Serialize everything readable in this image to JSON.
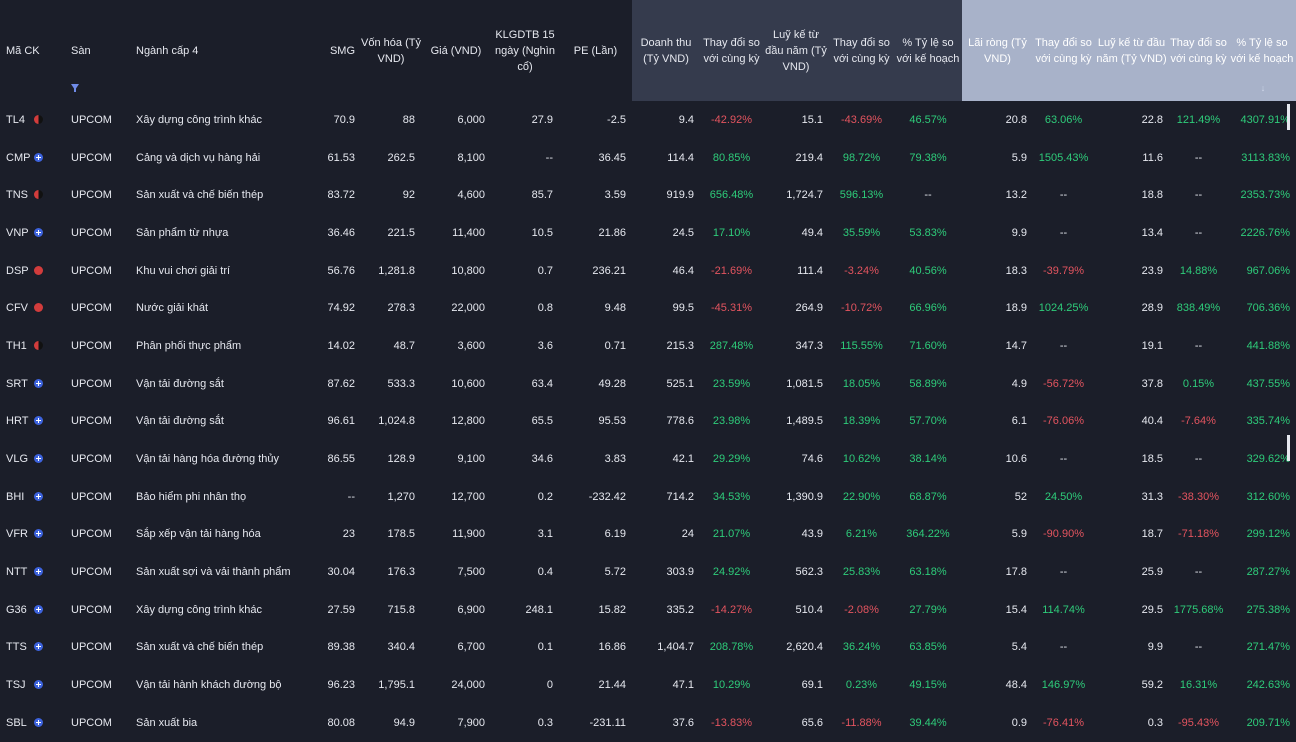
{
  "headers": {
    "ma_ck": "Mã CK",
    "san": "Sàn",
    "nganh": "Ngành cấp 4",
    "smg": "SMG",
    "von_hoa": "Vốn hóa (Tỷ VND)",
    "gia": "Giá (VND)",
    "klgdtb": "KLGDTB 15 ngày (Nghìn cổ)",
    "pe": "PE (Lần)",
    "doanh_thu": "Doanh thu (Tỷ VND)",
    "thay_doi_1": "Thay đổi so với cùng kỳ",
    "luy_ke_1": "Luỹ kế từ đầu năm (Tỷ VND)",
    "thay_doi_2": "Thay đổi so với cùng kỳ",
    "ty_le_1": "% Tỷ lệ so với kế hoạch",
    "lai_rong": "Lãi ròng (Tỷ VND)",
    "thay_doi_3": "Thay đổi so với cùng kỳ",
    "luy_ke_2": "Luỹ kế từ đầu năm (Tỷ VND)",
    "thay_doi_4": "Thay đổi so với cùng kỳ",
    "ty_le_2": "% Tỷ lệ so với kế hoạch"
  },
  "icons": {
    "filter": "filter-icon",
    "sort": "sort-down-icon",
    "plus_marker": "plus-circle-icon",
    "red_marker": "red-dot-icon",
    "half_marker": "half-red-black-icon"
  },
  "colors": {
    "positive": "#2ecc7a",
    "negative": "#e3545f",
    "accent": "#3d63dd"
  },
  "rows": [
    [
      "TL4",
      "half",
      "UPCOM",
      "Xây dựng công trình khác",
      "70.9",
      "88",
      "6,000",
      "27.9",
      "-2.5",
      "9.4",
      "-42.92%",
      "15.1",
      "-43.69%",
      "46.57%",
      "20.8",
      "63.06%",
      "22.8",
      "121.49%",
      "4307.91%"
    ],
    [
      "CMP",
      "plus",
      "UPCOM",
      "Cảng và dịch vụ hàng hải",
      "61.53",
      "262.5",
      "8,100",
      "--",
      "36.45",
      "114.4",
      "80.85%",
      "219.4",
      "98.72%",
      "79.38%",
      "5.9",
      "1505.43%",
      "11.6",
      "--",
      "3113.83%"
    ],
    [
      "TNS",
      "half",
      "UPCOM",
      "Sản xuất và chế biến thép",
      "83.72",
      "92",
      "4,600",
      "85.7",
      "3.59",
      "919.9",
      "656.48%",
      "1,724.7",
      "596.13%",
      "--",
      "13.2",
      "--",
      "18.8",
      "--",
      "2353.73%"
    ],
    [
      "VNP",
      "plus",
      "UPCOM",
      "Sản phẩm từ nhựa",
      "36.46",
      "221.5",
      "11,400",
      "10.5",
      "21.86",
      "24.5",
      "17.10%",
      "49.4",
      "35.59%",
      "53.83%",
      "9.9",
      "--",
      "13.4",
      "--",
      "2226.76%"
    ],
    [
      "DSP",
      "red",
      "UPCOM",
      "Khu vui chơi giải trí",
      "56.76",
      "1,281.8",
      "10,800",
      "0.7",
      "236.21",
      "46.4",
      "-21.69%",
      "111.4",
      "-3.24%",
      "40.56%",
      "18.3",
      "-39.79%",
      "23.9",
      "14.88%",
      "967.06%"
    ],
    [
      "CFV",
      "red",
      "UPCOM",
      "Nước giải khát",
      "74.92",
      "278.3",
      "22,000",
      "0.8",
      "9.48",
      "99.5",
      "-45.31%",
      "264.9",
      "-10.72%",
      "66.96%",
      "18.9",
      "1024.25%",
      "28.9",
      "838.49%",
      "706.36%"
    ],
    [
      "TH1",
      "half",
      "UPCOM",
      "Phân phối thực phẩm",
      "14.02",
      "48.7",
      "3,600",
      "3.6",
      "0.71",
      "215.3",
      "287.48%",
      "347.3",
      "115.55%",
      "71.60%",
      "14.7",
      "--",
      "19.1",
      "--",
      "441.88%"
    ],
    [
      "SRT",
      "plus",
      "UPCOM",
      "Vận tải đường sắt",
      "87.62",
      "533.3",
      "10,600",
      "63.4",
      "49.28",
      "525.1",
      "23.59%",
      "1,081.5",
      "18.05%",
      "58.89%",
      "4.9",
      "-56.72%",
      "37.8",
      "0.15%",
      "437.55%"
    ],
    [
      "HRT",
      "plus",
      "UPCOM",
      "Vận tải đường sắt",
      "96.61",
      "1,024.8",
      "12,800",
      "65.5",
      "95.53",
      "778.6",
      "23.98%",
      "1,489.5",
      "18.39%",
      "57.70%",
      "6.1",
      "-76.06%",
      "40.4",
      "-7.64%",
      "335.74%"
    ],
    [
      "VLG",
      "plus",
      "UPCOM",
      "Vận tải hàng hóa đường thủy",
      "86.55",
      "128.9",
      "9,100",
      "34.6",
      "3.83",
      "42.1",
      "29.29%",
      "74.6",
      "10.62%",
      "38.14%",
      "10.6",
      "--",
      "18.5",
      "--",
      "329.62%"
    ],
    [
      "BHI",
      "plus",
      "UPCOM",
      "Bảo hiểm phi nhân thọ",
      "--",
      "1,270",
      "12,700",
      "0.2",
      "-232.42",
      "714.2",
      "34.53%",
      "1,390.9",
      "22.90%",
      "68.87%",
      "52",
      "24.50%",
      "31.3",
      "-38.30%",
      "312.60%"
    ],
    [
      "VFR",
      "plus",
      "UPCOM",
      "Sắp xếp vận tải hàng hóa",
      "23",
      "178.5",
      "11,900",
      "3.1",
      "6.19",
      "24",
      "21.07%",
      "43.9",
      "6.21%",
      "364.22%",
      "5.9",
      "-90.90%",
      "18.7",
      "-71.18%",
      "299.12%"
    ],
    [
      "NTT",
      "plus",
      "UPCOM",
      "Sản xuất sợi và vải thành phẩm",
      "30.04",
      "176.3",
      "7,500",
      "0.4",
      "5.72",
      "303.9",
      "24.92%",
      "562.3",
      "25.83%",
      "63.18%",
      "17.8",
      "--",
      "25.9",
      "--",
      "287.27%"
    ],
    [
      "G36",
      "plus",
      "UPCOM",
      "Xây dựng công trình khác",
      "27.59",
      "715.8",
      "6,900",
      "248.1",
      "15.82",
      "335.2",
      "-14.27%",
      "510.4",
      "-2.08%",
      "27.79%",
      "15.4",
      "114.74%",
      "29.5",
      "1775.68%",
      "275.38%"
    ],
    [
      "TTS",
      "plus",
      "UPCOM",
      "Sản xuất và chế biến thép",
      "89.38",
      "340.4",
      "6,700",
      "0.1",
      "16.86",
      "1,404.7",
      "208.78%",
      "2,620.4",
      "36.24%",
      "63.85%",
      "5.4",
      "--",
      "9.9",
      "--",
      "271.47%"
    ],
    [
      "TSJ",
      "plus",
      "UPCOM",
      "Vận tải hành khách đường bộ",
      "96.23",
      "1,795.1",
      "24,000",
      "0",
      "21.44",
      "47.1",
      "10.29%",
      "69.1",
      "0.23%",
      "49.15%",
      "48.4",
      "146.97%",
      "59.2",
      "16.31%",
      "242.63%"
    ],
    [
      "SBL",
      "plus",
      "UPCOM",
      "Sản xuất bia",
      "80.08",
      "94.9",
      "7,900",
      "0.3",
      "-231.11",
      "37.6",
      "-13.83%",
      "65.6",
      "-11.88%",
      "39.44%",
      "0.9",
      "-76.41%",
      "0.3",
      "-95.43%",
      "209.71%"
    ]
  ]
}
